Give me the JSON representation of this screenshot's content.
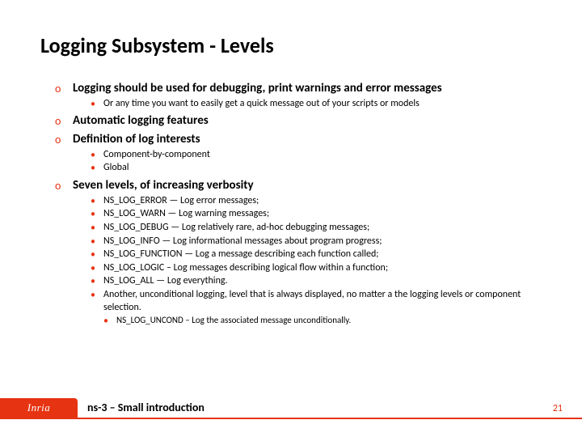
{
  "title": "Logging Subsystem - Levels",
  "colors": {
    "accent": "#e63312",
    "text": "#000000",
    "bg": "#ffffff"
  },
  "items": [
    {
      "text": "Logging should be used for debugging, print warnings and error messages",
      "sub": [
        {
          "text": "Or any time you want to easily get a quick message out of your scripts or models"
        }
      ]
    },
    {
      "text": "Automatic logging features"
    },
    {
      "text": "Definition of log interests",
      "sub": [
        {
          "text": "Component-by-component"
        },
        {
          "text": "Global"
        }
      ]
    },
    {
      "text": "Seven levels, of increasing verbosity",
      "sub": [
        {
          "text": "NS_LOG_ERROR — Log error messages;"
        },
        {
          "text": "NS_LOG_WARN — Log warning messages;"
        },
        {
          "text": "NS_LOG_DEBUG — Log relatively rare, ad-hoc debugging messages;"
        },
        {
          "text": "NS_LOG_INFO — Log informational messages about program progress;"
        },
        {
          "text": "NS_LOG_FUNCTION — Log a message describing each function called;"
        },
        {
          "text": "NS_LOG_LOGIC – Log messages describing logical flow within a function;"
        },
        {
          "text": "NS_LOG_ALL — Log everything."
        },
        {
          "text": "Another, unconditional logging, level that is always displayed, no matter a the logging levels or component selection.",
          "subsub": [
            {
              "text": "NS_LOG_UNCOND – Log the associated message unconditionally."
            }
          ]
        }
      ]
    }
  ],
  "footer": {
    "logo": "Inria",
    "title": "ns-3 – Small introduction",
    "page": "21"
  }
}
